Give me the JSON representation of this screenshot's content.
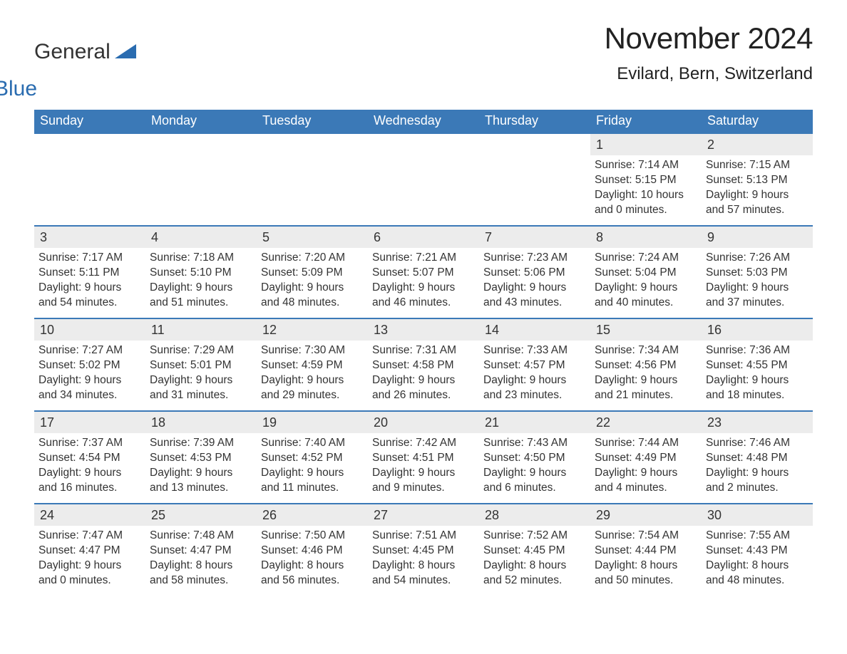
{
  "logo": {
    "word1": "General",
    "word2": "Blue",
    "accent_color": "#2a6cb0"
  },
  "title": "November 2024",
  "subtitle": "Evilard, Bern, Switzerland",
  "colors": {
    "header_bg": "#3b79b7",
    "header_text": "#ffffff",
    "week_border": "#3b79b7",
    "daynum_bg": "#ececec",
    "text": "#333333",
    "background": "#ffffff"
  },
  "font": {
    "family": "Arial",
    "title_size_pt": 32,
    "subtitle_size_pt": 18,
    "header_size_pt": 14,
    "body_size_pt": 12
  },
  "layout": {
    "columns": 7,
    "rows": 5,
    "start_weekday": "Sunday",
    "first_day_column_index": 5
  },
  "days_header": [
    "Sunday",
    "Monday",
    "Tuesday",
    "Wednesday",
    "Thursday",
    "Friday",
    "Saturday"
  ],
  "weeks": [
    [
      {
        "blank": true
      },
      {
        "blank": true
      },
      {
        "blank": true
      },
      {
        "blank": true
      },
      {
        "blank": true
      },
      {
        "n": "1",
        "sunrise": "Sunrise: 7:14 AM",
        "sunset": "Sunset: 5:15 PM",
        "dl1": "Daylight: 10 hours",
        "dl2": "and 0 minutes."
      },
      {
        "n": "2",
        "sunrise": "Sunrise: 7:15 AM",
        "sunset": "Sunset: 5:13 PM",
        "dl1": "Daylight: 9 hours",
        "dl2": "and 57 minutes."
      }
    ],
    [
      {
        "n": "3",
        "sunrise": "Sunrise: 7:17 AM",
        "sunset": "Sunset: 5:11 PM",
        "dl1": "Daylight: 9 hours",
        "dl2": "and 54 minutes."
      },
      {
        "n": "4",
        "sunrise": "Sunrise: 7:18 AM",
        "sunset": "Sunset: 5:10 PM",
        "dl1": "Daylight: 9 hours",
        "dl2": "and 51 minutes."
      },
      {
        "n": "5",
        "sunrise": "Sunrise: 7:20 AM",
        "sunset": "Sunset: 5:09 PM",
        "dl1": "Daylight: 9 hours",
        "dl2": "and 48 minutes."
      },
      {
        "n": "6",
        "sunrise": "Sunrise: 7:21 AM",
        "sunset": "Sunset: 5:07 PM",
        "dl1": "Daylight: 9 hours",
        "dl2": "and 46 minutes."
      },
      {
        "n": "7",
        "sunrise": "Sunrise: 7:23 AM",
        "sunset": "Sunset: 5:06 PM",
        "dl1": "Daylight: 9 hours",
        "dl2": "and 43 minutes."
      },
      {
        "n": "8",
        "sunrise": "Sunrise: 7:24 AM",
        "sunset": "Sunset: 5:04 PM",
        "dl1": "Daylight: 9 hours",
        "dl2": "and 40 minutes."
      },
      {
        "n": "9",
        "sunrise": "Sunrise: 7:26 AM",
        "sunset": "Sunset: 5:03 PM",
        "dl1": "Daylight: 9 hours",
        "dl2": "and 37 minutes."
      }
    ],
    [
      {
        "n": "10",
        "sunrise": "Sunrise: 7:27 AM",
        "sunset": "Sunset: 5:02 PM",
        "dl1": "Daylight: 9 hours",
        "dl2": "and 34 minutes."
      },
      {
        "n": "11",
        "sunrise": "Sunrise: 7:29 AM",
        "sunset": "Sunset: 5:01 PM",
        "dl1": "Daylight: 9 hours",
        "dl2": "and 31 minutes."
      },
      {
        "n": "12",
        "sunrise": "Sunrise: 7:30 AM",
        "sunset": "Sunset: 4:59 PM",
        "dl1": "Daylight: 9 hours",
        "dl2": "and 29 minutes."
      },
      {
        "n": "13",
        "sunrise": "Sunrise: 7:31 AM",
        "sunset": "Sunset: 4:58 PM",
        "dl1": "Daylight: 9 hours",
        "dl2": "and 26 minutes."
      },
      {
        "n": "14",
        "sunrise": "Sunrise: 7:33 AM",
        "sunset": "Sunset: 4:57 PM",
        "dl1": "Daylight: 9 hours",
        "dl2": "and 23 minutes."
      },
      {
        "n": "15",
        "sunrise": "Sunrise: 7:34 AM",
        "sunset": "Sunset: 4:56 PM",
        "dl1": "Daylight: 9 hours",
        "dl2": "and 21 minutes."
      },
      {
        "n": "16",
        "sunrise": "Sunrise: 7:36 AM",
        "sunset": "Sunset: 4:55 PM",
        "dl1": "Daylight: 9 hours",
        "dl2": "and 18 minutes."
      }
    ],
    [
      {
        "n": "17",
        "sunrise": "Sunrise: 7:37 AM",
        "sunset": "Sunset: 4:54 PM",
        "dl1": "Daylight: 9 hours",
        "dl2": "and 16 minutes."
      },
      {
        "n": "18",
        "sunrise": "Sunrise: 7:39 AM",
        "sunset": "Sunset: 4:53 PM",
        "dl1": "Daylight: 9 hours",
        "dl2": "and 13 minutes."
      },
      {
        "n": "19",
        "sunrise": "Sunrise: 7:40 AM",
        "sunset": "Sunset: 4:52 PM",
        "dl1": "Daylight: 9 hours",
        "dl2": "and 11 minutes."
      },
      {
        "n": "20",
        "sunrise": "Sunrise: 7:42 AM",
        "sunset": "Sunset: 4:51 PM",
        "dl1": "Daylight: 9 hours",
        "dl2": "and 9 minutes."
      },
      {
        "n": "21",
        "sunrise": "Sunrise: 7:43 AM",
        "sunset": "Sunset: 4:50 PM",
        "dl1": "Daylight: 9 hours",
        "dl2": "and 6 minutes."
      },
      {
        "n": "22",
        "sunrise": "Sunrise: 7:44 AM",
        "sunset": "Sunset: 4:49 PM",
        "dl1": "Daylight: 9 hours",
        "dl2": "and 4 minutes."
      },
      {
        "n": "23",
        "sunrise": "Sunrise: 7:46 AM",
        "sunset": "Sunset: 4:48 PM",
        "dl1": "Daylight: 9 hours",
        "dl2": "and 2 minutes."
      }
    ],
    [
      {
        "n": "24",
        "sunrise": "Sunrise: 7:47 AM",
        "sunset": "Sunset: 4:47 PM",
        "dl1": "Daylight: 9 hours",
        "dl2": "and 0 minutes."
      },
      {
        "n": "25",
        "sunrise": "Sunrise: 7:48 AM",
        "sunset": "Sunset: 4:47 PM",
        "dl1": "Daylight: 8 hours",
        "dl2": "and 58 minutes."
      },
      {
        "n": "26",
        "sunrise": "Sunrise: 7:50 AM",
        "sunset": "Sunset: 4:46 PM",
        "dl1": "Daylight: 8 hours",
        "dl2": "and 56 minutes."
      },
      {
        "n": "27",
        "sunrise": "Sunrise: 7:51 AM",
        "sunset": "Sunset: 4:45 PM",
        "dl1": "Daylight: 8 hours",
        "dl2": "and 54 minutes."
      },
      {
        "n": "28",
        "sunrise": "Sunrise: 7:52 AM",
        "sunset": "Sunset: 4:45 PM",
        "dl1": "Daylight: 8 hours",
        "dl2": "and 52 minutes."
      },
      {
        "n": "29",
        "sunrise": "Sunrise: 7:54 AM",
        "sunset": "Sunset: 4:44 PM",
        "dl1": "Daylight: 8 hours",
        "dl2": "and 50 minutes."
      },
      {
        "n": "30",
        "sunrise": "Sunrise: 7:55 AM",
        "sunset": "Sunset: 4:43 PM",
        "dl1": "Daylight: 8 hours",
        "dl2": "and 48 minutes."
      }
    ]
  ]
}
